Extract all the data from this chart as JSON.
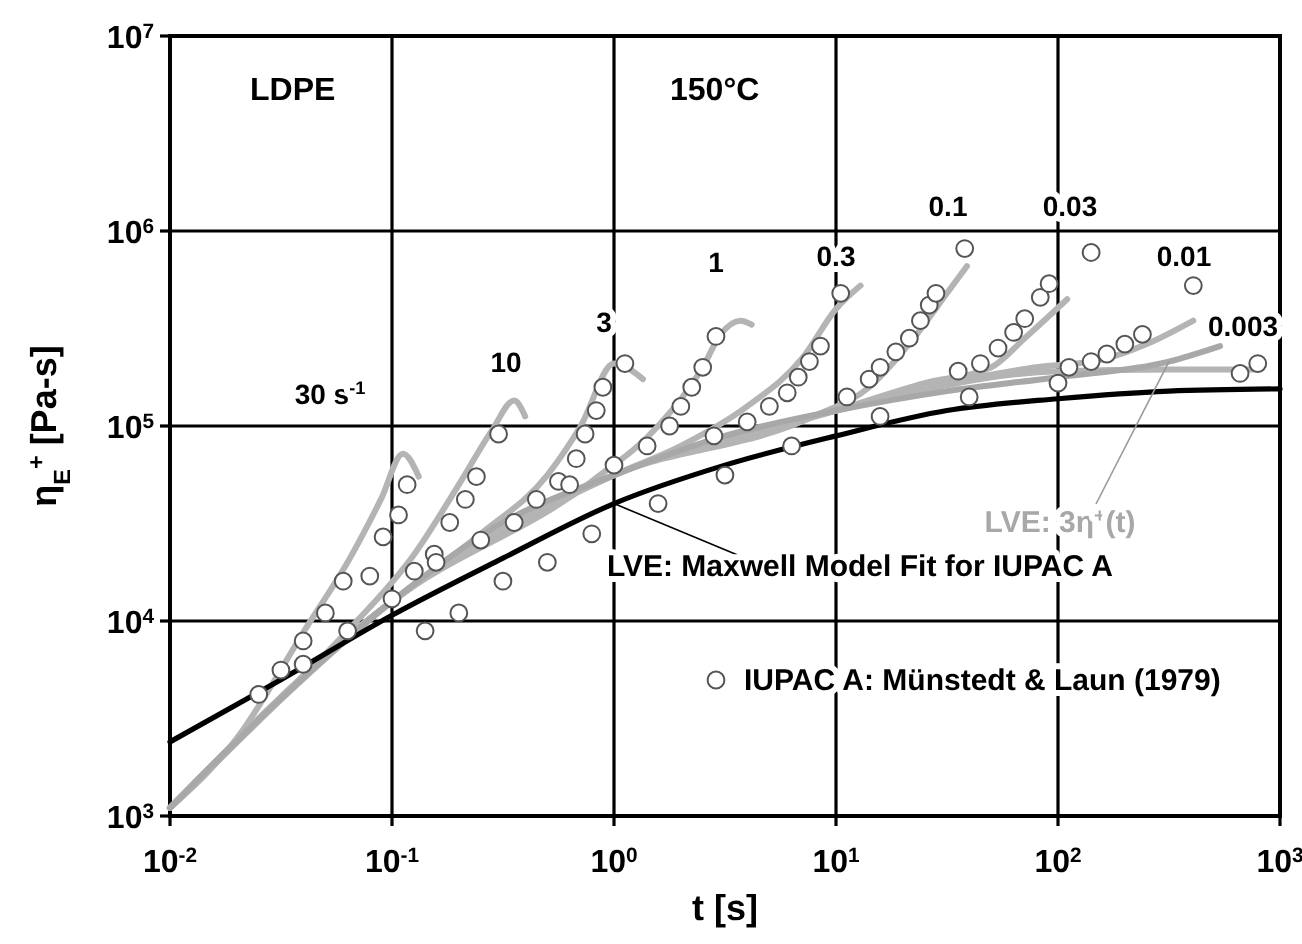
{
  "chart_data": {
    "type": "line",
    "xlabel": "t [s]",
    "ylabel": "η$_{E}$$^{+}$ [Pa-s]",
    "log": "xy",
    "grid": true,
    "legend": "bottom right",
    "xlim": [
      0.01,
      1000
    ],
    "ylim": [
      1000,
      10000000
    ],
    "xticks": [
      {
        "value": 0.01,
        "label": "10$^{-2}$"
      },
      {
        "value": 0.1,
        "label": "10$^{-1}$"
      },
      {
        "value": 1,
        "label": "10$^{0}$"
      },
      {
        "value": 10,
        "label": "10$^{1}$"
      },
      {
        "value": 100,
        "label": "10$^{2}$"
      },
      {
        "value": 1000,
        "label": "10$^{3}$"
      }
    ],
    "yticks": [
      {
        "value": 1000,
        "label": "10$^{3}$"
      },
      {
        "value": 10000,
        "label": "10$^{4}$"
      },
      {
        "value": 100000,
        "label": "10$^{5}$"
      },
      {
        "value": 1000000,
        "label": "10$^{6}$"
      },
      {
        "value": 10000000,
        "label": "10$^{7}$"
      }
    ],
    "annotations": [
      "LDPE",
      "150°C",
      "30 s$^{-1}$",
      "10",
      "3",
      "1",
      "0.3",
      "0.1",
      "0.03",
      "0.01",
      "0.003"
    ],
    "series": [
      {
        "color": "#b4b4b4",
        "x": [
          0.01,
          0.02,
          0.0417,
          0.0631,
          0.0891,
          0.112,
          0.132
        ],
        "values": [
          1100,
          2500,
          9500,
          20000,
          42000,
          72000,
          55000
        ]
      },
      {
        "color": "#b4b4b4",
        "x": [
          0.01,
          0.0316,
          0.0631,
          0.126,
          0.2,
          0.282,
          0.355,
          0.398
        ],
        "values": [
          1100,
          4000,
          8900,
          22000,
          50000,
          95000,
          135000,
          112000
        ]
      },
      {
        "color": "#b4b4b4",
        "x": [
          0.01,
          0.1,
          0.251,
          0.501,
          0.708,
          1,
          1.35
        ],
        "values": [
          1100,
          12600,
          28000,
          56000,
          100000,
          209000,
          174000
        ]
      },
      {
        "color": "#b4b4b4",
        "x": [
          0.01,
          0.1,
          0.794,
          1.58,
          2.51,
          3.02,
          3.72,
          4.17
        ],
        "values": [
          1100,
          12600,
          52000,
          100000,
          200000,
          295000,
          347000,
          331000
        ]
      },
      {
        "color": "#b4b4b4",
        "x": [
          0.01,
          0.1,
          1,
          2,
          3.98,
          7.08,
          10,
          12.9
        ],
        "values": [
          1100,
          12600,
          56000,
          79000,
          126000,
          224000,
          398000,
          525000
        ]
      },
      {
        "color": "#b4b4b4",
        "x": [
          0.01,
          0.1,
          1,
          7.94,
          14.1,
          22.4,
          31.6,
          38.9
        ],
        "values": [
          1100,
          12600,
          56000,
          112000,
          158000,
          282000,
          479000,
          661000
        ]
      },
      {
        "color": "#b4b4b4",
        "x": [
          0.01,
          0.1,
          1,
          10,
          25.1,
          50.1,
          70.8,
          110
        ],
        "values": [
          1100,
          12600,
          56000,
          120000,
          166000,
          200000,
          282000,
          447000
        ]
      },
      {
        "color": "#b4b4b4",
        "x": [
          0.01,
          0.1,
          1,
          10,
          79.4,
          158,
          251,
          407
        ],
        "values": [
          1100,
          12600,
          56000,
          120000,
          200000,
          219000,
          263000,
          347000
        ]
      },
      {
        "color": "#b4b4b4",
        "x": [
          0.01,
          0.1,
          1,
          10,
          100,
          316,
          813
        ],
        "values": [
          1100,
          12600,
          56000,
          120000,
          191000,
          195000,
          195000
        ]
      },
      {
        "name": "LVE: 3η$^{+}$(t)",
        "color": "#a8a8a8",
        "x": [
          0.01,
          0.0316,
          0.1,
          0.316,
          1,
          3.16,
          10,
          31.6,
          100,
          316,
          537
        ],
        "values": [
          1100,
          4000,
          12600,
          32000,
          56000,
          89000,
          120000,
          151000,
          178000,
          214000,
          257000
        ]
      },
      {
        "name": "LVE: Maxwell Model Fit for IUPAC A",
        "color": "#000000",
        "x": [
          0.01,
          0.0316,
          0.1,
          0.316,
          1,
          3.16,
          10,
          31.6,
          100,
          316,
          1000
        ],
        "values": [
          2400,
          5000,
          10700,
          21000,
          40000,
          63000,
          89000,
          120000,
          138000,
          151000,
          155000
        ]
      },
      {
        "type": "scatter",
        "name": "IUPAC A: Münstedt & Laun (1979)",
        "color": "#555555",
        "marker": "circle",
        "x": [
          0.0251,
          0.0316,
          0.0398,
          0.0501,
          0.0603,
          0.0794,
          0.0912,
          0.107,
          0.117,
          0.0398,
          0.0631,
          0.1,
          0.126,
          0.155,
          0.182,
          0.214,
          0.24,
          0.302,
          0.158,
          0.251,
          0.355,
          0.447,
          0.562,
          0.676,
          0.741,
          0.832,
          0.891,
          1.12,
          0.631,
          1,
          1.41,
          1.78,
          2,
          2.24,
          2.51,
          2.88,
          2.82,
          3.98,
          5.01,
          6.03,
          6.76,
          7.59,
          8.51,
          10.5,
          11.2,
          14.1,
          15.8,
          18.6,
          21.4,
          24,
          26.3,
          28.2,
          38,
          35.5,
          44.7,
          53.7,
          63.1,
          70.8,
          83.2,
          91.2,
          141,
          112,
          141,
          166,
          200,
          240,
          407,
          100,
          661,
          794,
          0.141,
          0.2,
          0.316,
          0.501,
          0.794,
          1.58,
          3.16,
          6.31,
          15.8,
          39.8
        ],
        "values": [
          4200,
          5600,
          7900,
          11000,
          16000,
          17000,
          27000,
          35000,
          50000,
          6000,
          8900,
          13000,
          18000,
          22000,
          32000,
          42000,
          55000,
          91000,
          20000,
          26000,
          32000,
          42000,
          52000,
          68000,
          91000,
          120000,
          158000,
          209000,
          50000,
          63000,
          79000,
          100000,
          126000,
          158000,
          200000,
          288000,
          89000,
          105000,
          126000,
          148000,
          178000,
          214000,
          257000,
          479000,
          141000,
          174000,
          200000,
          240000,
          282000,
          347000,
          417000,
          479000,
          813000,
          191000,
          209000,
          251000,
          302000,
          355000,
          457000,
          537000,
          776000,
          200000,
          214000,
          234000,
          263000,
          295000,
          525000,
          166000,
          186000,
          209000,
          8900,
          11000,
          16000,
          20000,
          28000,
          40000,
          56000,
          79000,
          112000,
          141000
        ]
      }
    ]
  }
}
